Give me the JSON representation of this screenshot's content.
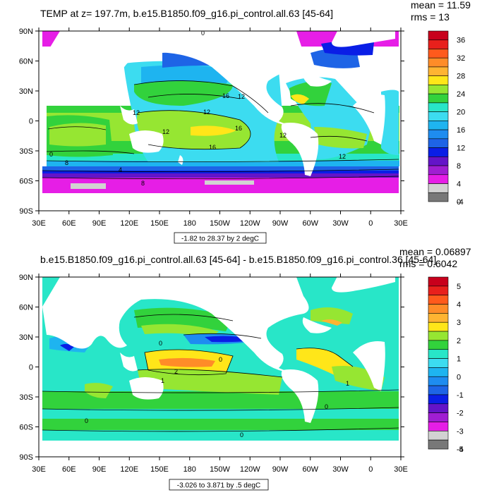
{
  "panels": [
    {
      "title": "TEMP at z= 197.7m, b.e15.B1850.f09_g16.pi_control.all.63 [45-64]",
      "mean": "mean = 11.59",
      "rms": "rms = 13",
      "range_label": "-1.82 to 28.37 by 2 degC",
      "lat_labels": [
        "90N",
        "60N",
        "30N",
        "0",
        "30S",
        "60S",
        "90S"
      ],
      "lon_labels": [
        "30E",
        "60E",
        "90E",
        "120E",
        "150E",
        "180",
        "150W",
        "120W",
        "90W",
        "60W",
        "30W",
        "0",
        "30E"
      ],
      "contour_labels": [
        "0",
        "16",
        "12",
        "12",
        "16",
        "12",
        "12",
        "16",
        "4",
        "8",
        "8",
        "0",
        "12",
        "12"
      ],
      "colorbar": {
        "labels": [
          "36",
          "32",
          "28",
          "24",
          "20",
          "16",
          "12",
          "8",
          "4",
          "0",
          "-4"
        ],
        "colors": [
          "#c8001c",
          "#e8201c",
          "#ff5a1c",
          "#ff8c28",
          "#ffb432",
          "#ffe619",
          "#96e632",
          "#32d23c",
          "#28e6c8",
          "#3cdcf0",
          "#1eb4f0",
          "#1e8cf0",
          "#1e64e6",
          "#0a1ee6",
          "#6414c8",
          "#a01ed2",
          "#e61ee6",
          "#d2d2d2",
          "#787878"
        ]
      }
    },
    {
      "title": "b.e15.B1850.f09_g16.pi_control.all.63 [45-64] - b.e15.B1850.f09_g16.pi_control.36 [45-64]",
      "mean": "mean = 0.06897",
      "rms": "rms = 0.6042",
      "range_label": "-3.026 to 3.871 by .5 degC",
      "lat_labels": [
        "90N",
        "60N",
        "30N",
        "0",
        "30S",
        "60S",
        "90S"
      ],
      "lon_labels": [
        "30E",
        "60E",
        "90E",
        "120E",
        "150E",
        "180",
        "150W",
        "120W",
        "90W",
        "60W",
        "30W",
        "0",
        "30E"
      ],
      "contour_labels": [
        "0",
        "0",
        "2",
        "1",
        "1",
        "0",
        "0",
        "0"
      ],
      "colorbar": {
        "labels": [
          "5",
          "4",
          "3",
          "2",
          "1",
          "0",
          "-1",
          "-2",
          "-3",
          "-4",
          "-5"
        ],
        "colors": [
          "#c8001c",
          "#e8201c",
          "#ff5a1c",
          "#ff8c28",
          "#ffb432",
          "#ffe619",
          "#96e632",
          "#32d23c",
          "#28e6c8",
          "#3cdcf0",
          "#1eb4f0",
          "#1e8cf0",
          "#1e64e6",
          "#0a1ee6",
          "#6414c8",
          "#a01ed2",
          "#e61ee6",
          "#d2d2d2",
          "#787878"
        ]
      }
    }
  ]
}
